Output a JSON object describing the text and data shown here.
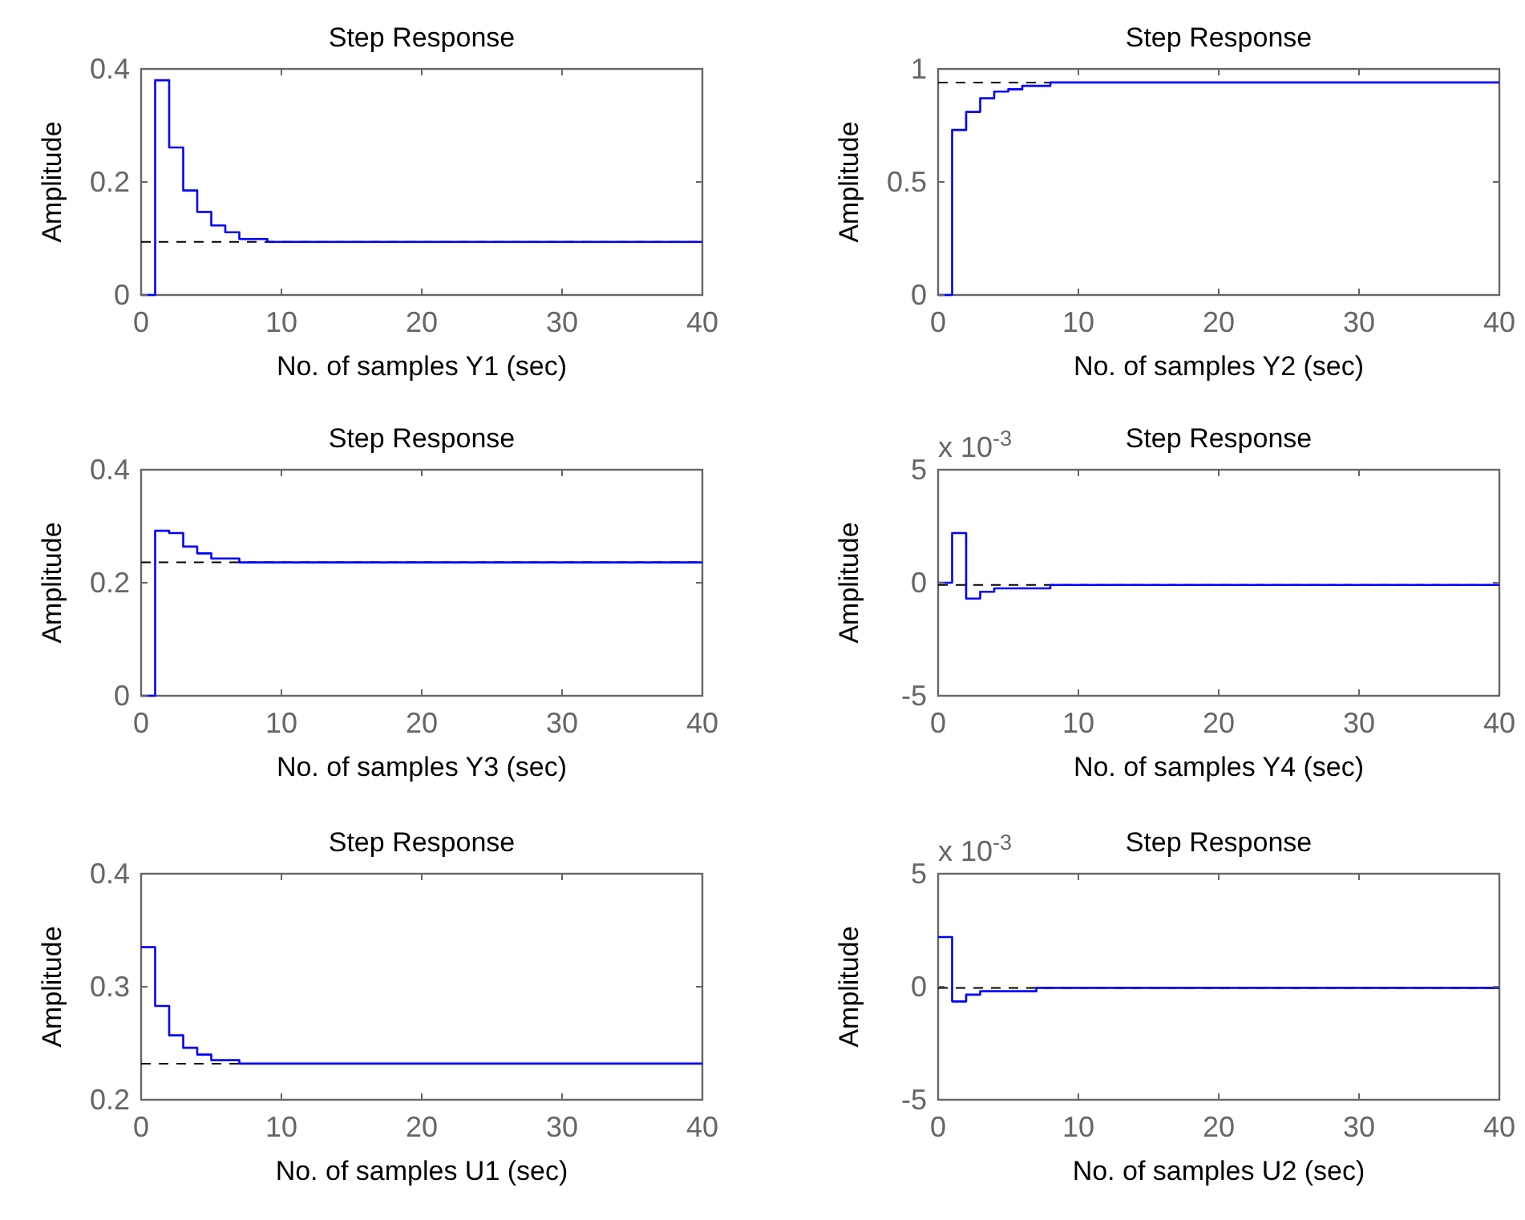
{
  "chart_data": [
    {
      "type": "step",
      "title": "Step Response",
      "xlabel": "No. of samples Y1 (sec)",
      "ylabel": "Amplitude",
      "xlim": [
        0,
        40
      ],
      "xticks": [
        0,
        10,
        20,
        30,
        40
      ],
      "ylim": [
        0,
        0.4
      ],
      "yticks": [
        0,
        0.2,
        0.4
      ],
      "series": [
        {
          "color": "#0000ff",
          "x": [
            0,
            1,
            2,
            3,
            4,
            5,
            6,
            7,
            9,
            40
          ],
          "values": [
            0,
            0.38,
            0.261,
            0.185,
            0.147,
            0.123,
            0.111,
            0.099,
            0.094,
            0.094
          ]
        }
      ],
      "ref_lines": [
        {
          "axis": "y",
          "value": 0.094,
          "color": "#000000",
          "line_style": "dashed"
        }
      ]
    },
    {
      "type": "step",
      "title": "Step Response",
      "xlabel": "No. of samples Y2 (sec)",
      "ylabel": "Amplitude",
      "xlim": [
        0,
        40
      ],
      "xticks": [
        0,
        10,
        20,
        30,
        40
      ],
      "ylim": [
        0,
        1
      ],
      "yticks": [
        0,
        0.5,
        1
      ],
      "series": [
        {
          "color": "#0000ff",
          "x": [
            0,
            1,
            2,
            3,
            4,
            5,
            6,
            8,
            40
          ],
          "values": [
            0,
            0.73,
            0.81,
            0.87,
            0.9,
            0.91,
            0.925,
            0.94,
            0.94
          ]
        }
      ],
      "ref_lines": [
        {
          "axis": "y",
          "value": 0.94,
          "color": "#000000",
          "line_style": "dashed"
        }
      ]
    },
    {
      "type": "step",
      "title": "Step Response",
      "xlabel": "No. of samples Y3 (sec)",
      "ylabel": "Amplitude",
      "xlim": [
        0,
        40
      ],
      "xticks": [
        0,
        10,
        20,
        30,
        40
      ],
      "ylim": [
        0,
        0.4
      ],
      "yticks": [
        0,
        0.2,
        0.4
      ],
      "series": [
        {
          "color": "#0000ff",
          "x": [
            0,
            1,
            2,
            3,
            4,
            5,
            7,
            40
          ],
          "values": [
            0,
            0.292,
            0.288,
            0.264,
            0.252,
            0.243,
            0.236,
            0.236
          ]
        }
      ],
      "ref_lines": [
        {
          "axis": "y",
          "value": 0.236,
          "color": "#000000",
          "line_style": "dashed"
        }
      ]
    },
    {
      "type": "step",
      "title": "Step Response",
      "xlabel": "No. of samples Y4 (sec)",
      "ylabel": "Amplitude",
      "xlim": [
        0,
        40
      ],
      "xticks": [
        0,
        10,
        20,
        30,
        40
      ],
      "ylim": [
        -5,
        5
      ],
      "yticks": [
        -5,
        0,
        5
      ],
      "annotations": [
        "x 10$^{-3}$"
      ],
      "series": [
        {
          "color": "#0000ff",
          "x": [
            0,
            1,
            2,
            3,
            4,
            8,
            40
          ],
          "values": [
            0,
            2.2,
            -0.7,
            -0.4,
            -0.25,
            -0.1,
            -0.1
          ]
        }
      ],
      "ref_lines": [
        {
          "axis": "y",
          "value": -0.1,
          "color": "#000000",
          "line_style": "dashed"
        }
      ]
    },
    {
      "type": "step",
      "title": "Step Response",
      "xlabel": "No. of samples U1 (sec)",
      "ylabel": "Amplitude",
      "xlim": [
        0,
        40
      ],
      "xticks": [
        0,
        10,
        20,
        30,
        40
      ],
      "ylim": [
        0.2,
        0.4
      ],
      "yticks": [
        0.2,
        0.3,
        0.4
      ],
      "series": [
        {
          "color": "#0000ff",
          "x": [
            0,
            1,
            2,
            3,
            4,
            5,
            7,
            40
          ],
          "values": [
            0.335,
            0.283,
            0.257,
            0.246,
            0.24,
            0.235,
            0.232,
            0.232
          ]
        }
      ],
      "ref_lines": [
        {
          "axis": "y",
          "value": 0.232,
          "color": "#000000",
          "line_style": "dashed"
        }
      ]
    },
    {
      "type": "step",
      "title": "Step Response",
      "xlabel": "No. of samples U2 (sec)",
      "ylabel": "Amplitude",
      "xlim": [
        0,
        40
      ],
      "xticks": [
        0,
        10,
        20,
        30,
        40
      ],
      "ylim": [
        -5,
        5
      ],
      "yticks": [
        -5,
        0,
        5
      ],
      "annotations": [
        "x 10$^{-3}$"
      ],
      "series": [
        {
          "color": "#0000ff",
          "x": [
            0,
            1,
            2,
            3,
            7,
            40
          ],
          "values": [
            2.2,
            -0.65,
            -0.35,
            -0.2,
            -0.05,
            -0.05
          ]
        }
      ],
      "ref_lines": [
        {
          "axis": "y",
          "value": -0.05,
          "color": "#000000",
          "line_style": "dashed"
        }
      ]
    }
  ]
}
